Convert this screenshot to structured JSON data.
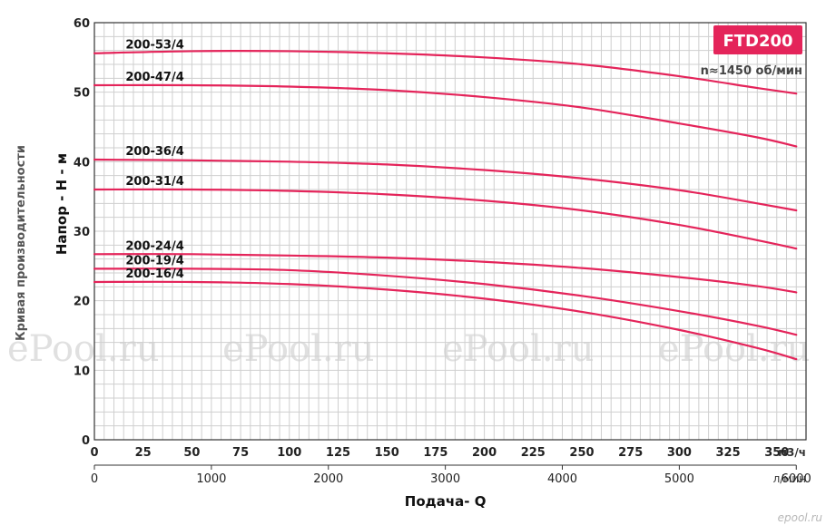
{
  "chart_data": {
    "type": "line",
    "badge": "FTD200",
    "speed_note": "n≈1450 об/мин",
    "side_title": "Кривая производительности",
    "xlabel": "Подача- Q",
    "ylabel": "Напор - H - м",
    "x_unit": "м3/ч",
    "x2_unit": "л/мин",
    "xlim": [
      0,
      365
    ],
    "ylim": [
      0,
      60
    ],
    "x_ticks": [
      "0",
      "25",
      "50",
      "75",
      "100",
      "125",
      "150",
      "175",
      "200",
      "225",
      "250",
      "275",
      "300",
      "325",
      "350"
    ],
    "x_tick_values": [
      0,
      25,
      50,
      75,
      100,
      125,
      150,
      175,
      200,
      225,
      250,
      275,
      300,
      325,
      350
    ],
    "x2_ticks": [
      "0",
      "1000",
      "2000",
      "3000",
      "4000",
      "5000",
      "6000"
    ],
    "x2_tick_values_m3h": [
      0,
      60,
      120,
      180,
      240,
      300,
      360
    ],
    "y_ticks": [
      "0",
      "10",
      "20",
      "30",
      "40",
      "50",
      "60"
    ],
    "y_tick_values": [
      0,
      10,
      20,
      30,
      40,
      50,
      60
    ],
    "grid": true,
    "color": "#e4245a",
    "watermarks": [
      "ePool.ru",
      "ePool.ru",
      "ePool.ru",
      "ePool.ru"
    ],
    "corner_mark": "epool.ru",
    "series": [
      {
        "name": "200-53/4",
        "x": [
          0,
          50,
          100,
          150,
          200,
          250,
          300,
          340,
          360
        ],
        "y": [
          55.6,
          55.9,
          55.9,
          55.6,
          55.0,
          54.0,
          52.3,
          50.6,
          49.8
        ]
      },
      {
        "name": "200-47/4",
        "x": [
          0,
          50,
          100,
          150,
          200,
          250,
          300,
          340,
          360
        ],
        "y": [
          51.0,
          51.0,
          50.8,
          50.3,
          49.3,
          47.8,
          45.5,
          43.5,
          42.2
        ]
      },
      {
        "name": "200-36/4",
        "x": [
          0,
          50,
          100,
          150,
          200,
          250,
          300,
          340,
          360
        ],
        "y": [
          40.3,
          40.2,
          40.0,
          39.6,
          38.8,
          37.6,
          35.9,
          34.0,
          33.0
        ]
      },
      {
        "name": "200-31/4",
        "x": [
          0,
          50,
          100,
          150,
          200,
          250,
          300,
          340,
          360
        ],
        "y": [
          36.0,
          36.0,
          35.8,
          35.3,
          34.4,
          33.0,
          30.9,
          28.7,
          27.5
        ]
      },
      {
        "name": "200-24/4",
        "x": [
          0,
          50,
          100,
          150,
          200,
          250,
          300,
          340,
          360
        ],
        "y": [
          26.7,
          26.7,
          26.5,
          26.2,
          25.6,
          24.7,
          23.4,
          22.1,
          21.2
        ]
      },
      {
        "name": "200-19/4",
        "x": [
          0,
          50,
          100,
          150,
          200,
          250,
          300,
          340,
          360
        ],
        "y": [
          24.6,
          24.6,
          24.4,
          23.6,
          22.4,
          20.7,
          18.5,
          16.4,
          15.1
        ]
      },
      {
        "name": "200-16/4",
        "x": [
          0,
          50,
          100,
          150,
          200,
          250,
          300,
          340,
          360
        ],
        "y": [
          22.7,
          22.7,
          22.4,
          21.6,
          20.3,
          18.4,
          15.8,
          13.2,
          11.6
        ]
      }
    ]
  }
}
